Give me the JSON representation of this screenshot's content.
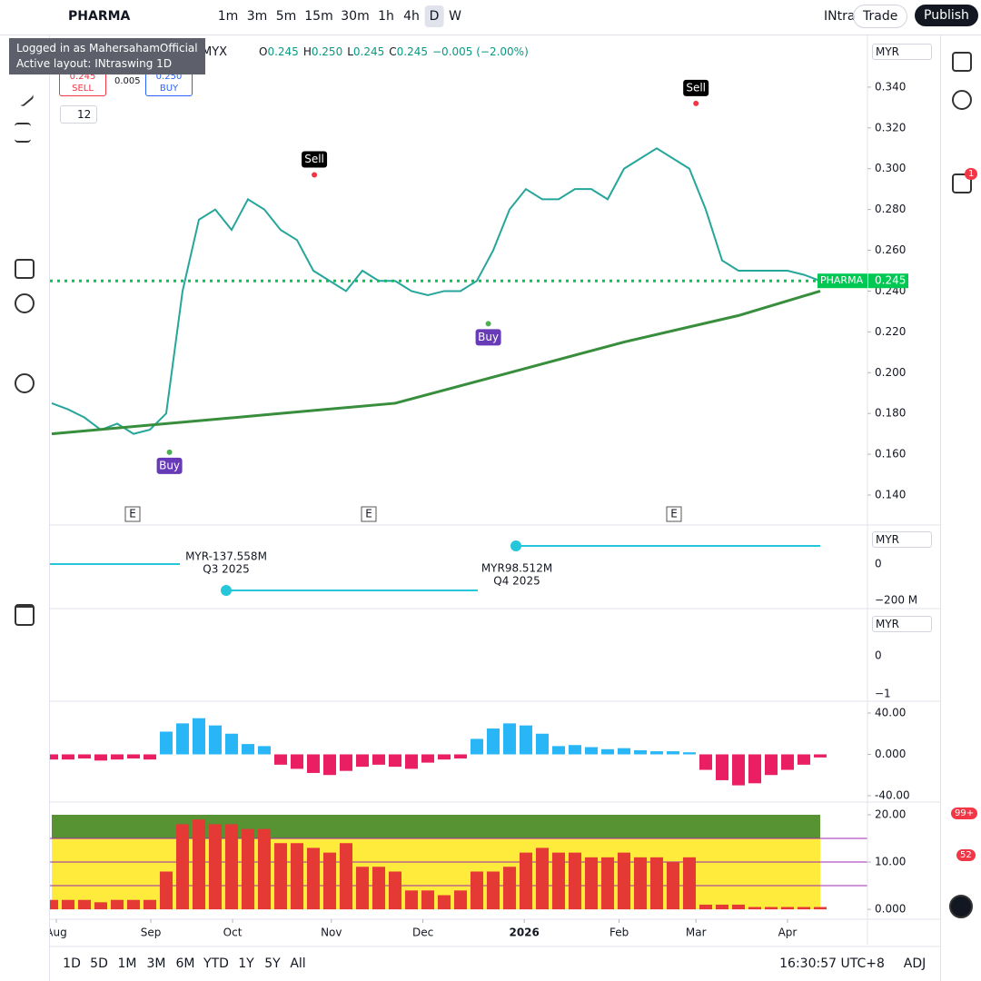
{
  "toolbar": {
    "symbol": "PHARMA",
    "intervals": [
      "1m",
      "3m",
      "5m",
      "15m",
      "30m",
      "1h",
      "4h",
      "D",
      "W"
    ],
    "layout": "INtra",
    "trade": "Trade",
    "publish": "Publish"
  },
  "tooltip": {
    "line1": "Logged in as MahersahamOfficial",
    "line2": "Active layout: INtraswing 1D"
  },
  "legend": {
    "exchange": "MYX",
    "ohlc": [
      {
        "k": "O",
        "v": "0.245"
      },
      {
        "k": "H",
        "v": "0.250"
      },
      {
        "k": "L",
        "v": "0.245"
      },
      {
        "k": "C",
        "v": "0.245"
      }
    ],
    "change": "−0.005 (−2.00%)"
  },
  "trade_panel": {
    "sell_price": "0.245",
    "sell": "SELL",
    "spread": "0.005",
    "buy_price": "0.250",
    "buy": "BUY"
  },
  "indicator_count": "12",
  "currency": "MYR",
  "badges": {
    "chat": "1",
    "feed": "99+",
    "alerts": "52"
  },
  "earnings": {
    "items": [
      {
        "amount": "MYR-137.558M",
        "quarter": "Q3 2025"
      },
      {
        "amount": "MYR98.512M",
        "quarter": "Q4 2025"
      }
    ],
    "ticks": [
      "0",
      "−200 M"
    ]
  },
  "pane3_ticks": [
    "0",
    "−1"
  ],
  "earnings_flag": "E",
  "bottom": {
    "ranges": [
      "1D",
      "5D",
      "1M",
      "3M",
      "6M",
      "YTD",
      "1Y",
      "5Y",
      "All"
    ],
    "time": "16:30:57 UTC+8",
    "adj": "ADJ"
  },
  "chart_data": [
    {
      "type": "line",
      "xlim": [
        -0.11,
        49.89
      ],
      "ylim": [
        0.1253,
        0.3649
      ],
      "xticks": [
        {
          "value": 0.28,
          "label": "Aug"
        },
        {
          "value": 6.06,
          "label": "Sep"
        },
        {
          "value": 11.06,
          "label": "Oct"
        },
        {
          "value": 17.1,
          "label": "Nov"
        },
        {
          "value": 22.7,
          "label": "Dec"
        },
        {
          "value": 28.9,
          "label": "2026"
        },
        {
          "value": 34.7,
          "label": "Feb"
        },
        {
          "value": 39.4,
          "label": "Mar"
        },
        {
          "value": 45,
          "label": "Apr"
        }
      ],
      "yticks": [
        {
          "value": 0.34,
          "label": "0.340"
        },
        {
          "value": 0.32,
          "label": "0.320"
        },
        {
          "value": 0.3,
          "label": "0.300"
        },
        {
          "value": 0.28,
          "label": "0.280"
        },
        {
          "value": 0.26,
          "label": "0.260"
        },
        {
          "value": 0.24,
          "label": "0.240"
        },
        {
          "value": 0.22,
          "label": "0.220"
        },
        {
          "value": 0.2,
          "label": "0.200"
        },
        {
          "value": 0.18,
          "label": "0.180"
        },
        {
          "value": 0.16,
          "label": "0.160"
        },
        {
          "value": 0.14,
          "label": "0.140"
        }
      ],
      "series": [
        {
          "color": "#26a69a",
          "values": [
            0.185,
            0.182,
            0.178,
            0.172,
            0.175,
            0.17,
            0.172,
            0.18,
            0.24,
            0.275,
            0.28,
            0.27,
            0.285,
            0.28,
            0.27,
            0.265,
            0.25,
            0.245,
            0.24,
            0.25,
            0.245,
            0.245,
            0.24,
            0.238,
            0.24,
            0.24,
            0.245,
            0.26,
            0.28,
            0.29,
            0.285,
            0.285,
            0.29,
            0.29,
            0.285,
            0.3,
            0.305,
            0.31,
            0.305,
            0.3,
            0.28,
            0.255,
            0.25,
            0.25,
            0.25,
            0.25,
            0.248,
            0.245
          ]
        },
        {
          "color": "#388e3c",
          "values": [
            0.17,
            null,
            null,
            null,
            null,
            null,
            null,
            0.175,
            null,
            null,
            null,
            null,
            null,
            null,
            0.18,
            null,
            null,
            null,
            null,
            null,
            null,
            0.185,
            null,
            null,
            null,
            null,
            null,
            null,
            0.2,
            null,
            null,
            null,
            null,
            null,
            null,
            0.215,
            null,
            null,
            null,
            null,
            null,
            null,
            0.228,
            null,
            null,
            null,
            null,
            0.24
          ]
        }
      ],
      "last_price": {
        "symbol": "PHARMA",
        "value": 0.245
      },
      "annotations": [
        {
          "text": "Sell",
          "x": 16.06,
          "y": 0.297
        },
        {
          "text": "Sell",
          "x": 39.4,
          "y": 0.332
        },
        {
          "text": "Buy",
          "x": 26.7,
          "y": 0.224
        },
        {
          "text": "Buy",
          "x": 7.2,
          "y": 0.161
        }
      ]
    },
    {
      "type": "bar",
      "ylim": [
        -45.3,
        48.8
      ],
      "yticks": [
        {
          "value": 40,
          "label": "40.00"
        },
        {
          "value": 0,
          "label": "0.000"
        },
        {
          "value": -40,
          "label": "-40.00"
        }
      ],
      "colors": {
        "up": "#29b6f6",
        "down": "#e91e63"
      },
      "values": [
        -5,
        -5,
        -4,
        -6,
        -5,
        -4,
        -5,
        22,
        30,
        35,
        28,
        20,
        10,
        8,
        -10,
        -14,
        -18,
        -20,
        -16,
        -12,
        -10,
        -12,
        -14,
        -8,
        -5,
        -4,
        15,
        25,
        30,
        28,
        20,
        8,
        9,
        7,
        5,
        6,
        4,
        3,
        3,
        2,
        -15,
        -25,
        -30,
        -28,
        -20,
        -15,
        -10,
        -3
      ]
    },
    {
      "type": "bar",
      "ylim": [
        -1.7,
        22.3
      ],
      "yticks": [
        {
          "value": 20,
          "label": "20.00"
        },
        {
          "value": 10,
          "label": "10.00"
        },
        {
          "value": 0,
          "label": "0.000"
        }
      ],
      "color": "#e53935",
      "values": [
        2,
        2,
        2,
        1.5,
        2,
        2,
        2,
        8,
        18,
        19,
        18,
        18,
        17,
        17,
        14,
        14,
        13,
        12,
        14,
        9,
        9,
        8,
        4,
        4,
        3,
        4,
        8,
        8,
        9,
        12,
        13,
        12,
        12,
        11,
        11,
        12,
        11,
        11,
        10,
        11,
        1,
        1,
        1,
        0.5,
        0.5,
        0.5,
        0.5,
        0.5
      ]
    }
  ]
}
